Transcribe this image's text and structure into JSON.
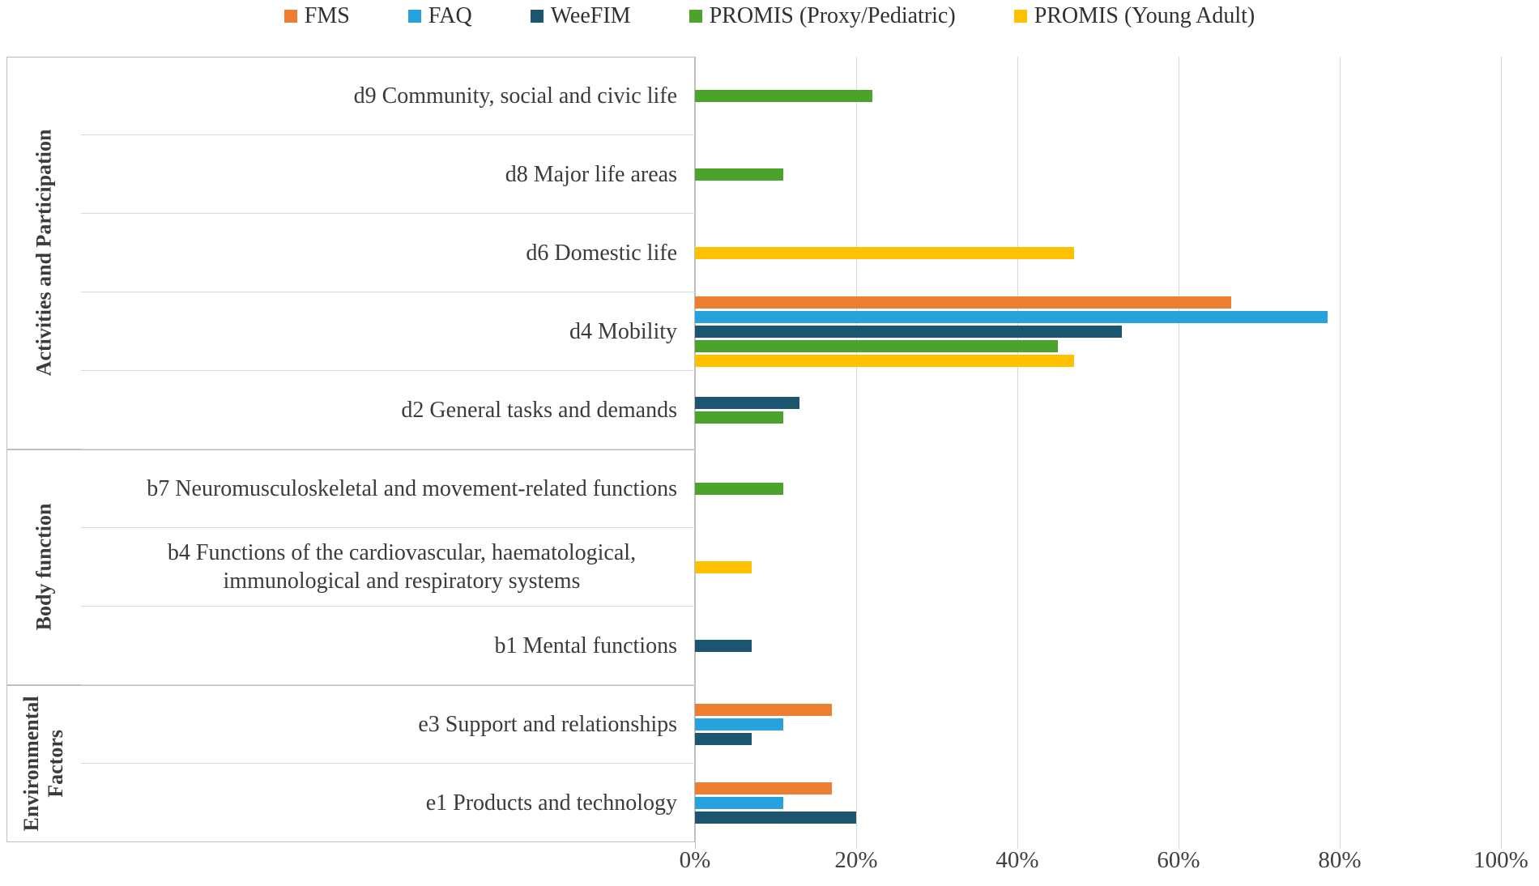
{
  "chart_data": {
    "type": "bar",
    "orientation": "horizontal",
    "title": "",
    "xlabel": "",
    "ylabel": "",
    "xlim": [
      0,
      100
    ],
    "x_ticks": [
      "0%",
      "20%",
      "40%",
      "60%",
      "80%",
      "100%"
    ],
    "x_tick_values": [
      0,
      20,
      40,
      60,
      80,
      100
    ],
    "grid": true,
    "legend_position": "top-center",
    "value_unit": "percent",
    "series": [
      {
        "name": "FMS",
        "color": "#ED7D31"
      },
      {
        "name": "FAQ",
        "color": "#28A2DC"
      },
      {
        "name": "WeeFIM",
        "color": "#1C5570"
      },
      {
        "name": "PROMIS (Proxy/Pediatric)",
        "color": "#4CA32C"
      },
      {
        "name": "PROMIS (Young Adult)",
        "color": "#FFC000"
      }
    ],
    "groups": [
      {
        "label": "Activities and Participation",
        "categories": [
          "d9 Community, social and civic life",
          "d8 Major life areas",
          "d6 Domestic life",
          "d4 Mobility",
          "d2 General tasks and demands"
        ]
      },
      {
        "label": "Body function",
        "categories": [
          "b7 Neuromusculoskeletal and movement-related functions",
          "b4 Functions of the cardiovascular, haematological, immunological and respiratory systems",
          "b1 Mental functions"
        ]
      },
      {
        "label": "Environmental Factors",
        "categories": [
          "e3 Support and relationships",
          "e1 Products and technology"
        ]
      }
    ],
    "categories": [
      {
        "label": "d9 Community, social and civic life",
        "group": "Activities and Participation",
        "values": {
          "PROMIS (Proxy/Pediatric)": 22
        }
      },
      {
        "label": "d8 Major life areas",
        "group": "Activities and Participation",
        "values": {
          "PROMIS (Proxy/Pediatric)": 11
        }
      },
      {
        "label": "d6 Domestic life",
        "group": "Activities and Participation",
        "values": {
          "PROMIS (Young Adult)": 47
        }
      },
      {
        "label": "d4 Mobility",
        "group": "Activities and Participation",
        "values": {
          "FMS": 66.5,
          "FAQ": 78.5,
          "WeeFIM": 53,
          "PROMIS (Proxy/Pediatric)": 45,
          "PROMIS (Young Adult)": 47
        }
      },
      {
        "label": "d2 General tasks and demands",
        "group": "Activities and Participation",
        "values": {
          "WeeFIM": 13,
          "PROMIS (Proxy/Pediatric)": 11
        }
      },
      {
        "label": "b7 Neuromusculoskeletal and movement-related functions",
        "group": "Body function",
        "values": {
          "PROMIS (Proxy/Pediatric)": 11
        }
      },
      {
        "label": "b4 Functions of the cardiovascular, haematological, immunological and respiratory systems",
        "group": "Body function",
        "values": {
          "PROMIS (Young Adult)": 7
        }
      },
      {
        "label": "b1 Mental functions",
        "group": "Body function",
        "values": {
          "WeeFIM": 7
        }
      },
      {
        "label": "e3 Support and relationships",
        "group": "Environmental Factors",
        "values": {
          "FMS": 17,
          "FAQ": 11,
          "WeeFIM": 7
        }
      },
      {
        "label": "e1 Products and technology",
        "group": "Environmental Factors",
        "values": {
          "FMS": 17,
          "FAQ": 11,
          "WeeFIM": 20
        }
      }
    ]
  }
}
